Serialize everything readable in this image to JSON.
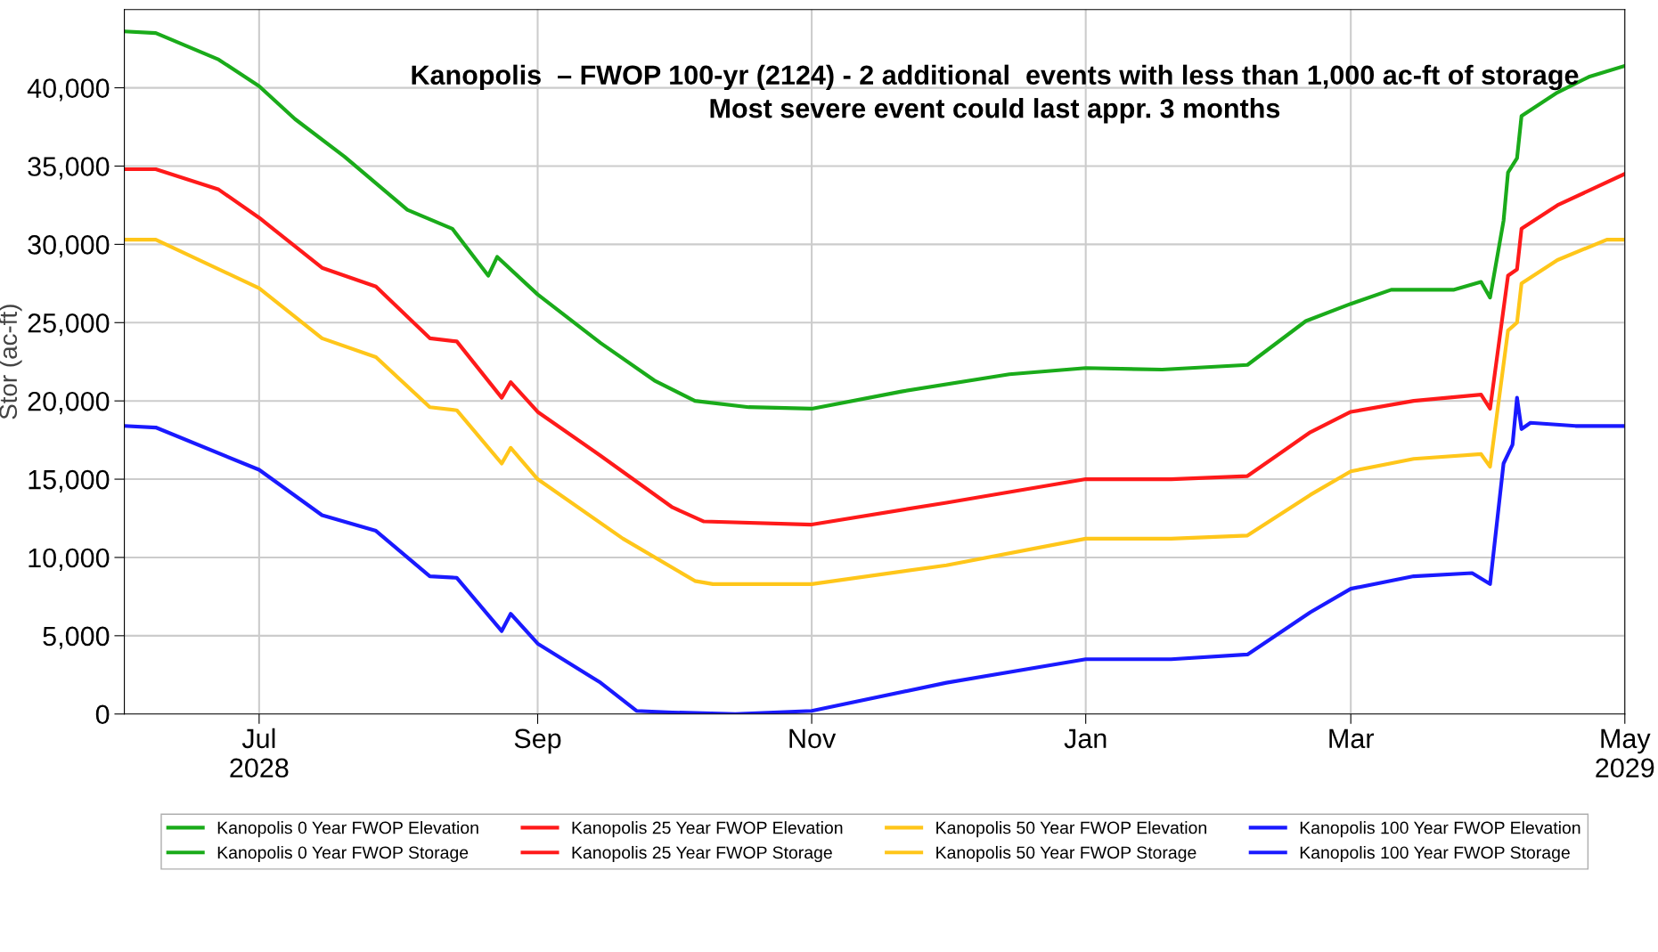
{
  "chart_data": {
    "type": "line",
    "ylabel": "Stor (ac-ft)",
    "annotations": [
      "Kanopolis  – FWOP 100-yr (2124) - 2 additional  events with less than 1,000 ac-ft of storage\nMost severe event could last appr. 3 months"
    ],
    "xlim": [
      "2028-06-01",
      "2029-05-01"
    ],
    "xticks": [
      {
        "value": "2028-07-01",
        "label": "Jul\n2028"
      },
      {
        "value": "2028-09-01",
        "label": "Sep"
      },
      {
        "value": "2028-11-01",
        "label": "Nov"
      },
      {
        "value": "2029-01-01",
        "label": "Jan"
      },
      {
        "value": "2029-03-01",
        "label": "Mar"
      },
      {
        "value": "2029-05-01",
        "label": "May\n2029"
      }
    ],
    "ylim": [
      0,
      45000
    ],
    "yticks": [
      0,
      {
        "value": 5000,
        "label": "5,000"
      },
      {
        "value": 10000,
        "label": "10,000"
      },
      {
        "value": 15000,
        "label": "15,000"
      },
      {
        "value": 20000,
        "label": "20,000"
      },
      {
        "value": 25000,
        "label": "25,000"
      },
      {
        "value": 30000,
        "label": "30,000"
      },
      {
        "value": 35000,
        "label": "35,000"
      },
      {
        "value": 40000,
        "label": "40,000"
      }
    ],
    "grid": true,
    "legend": "bottom",
    "line_style": "solid",
    "marker": "none",
    "series": [
      {
        "name": "Kanopolis 0 Year FWOP Elevation",
        "color": "#1aab1a"
      },
      {
        "name": "Kanopolis 0 Year FWOP Storage",
        "color": "#1aab1a",
        "x": [
          "2028-06-01",
          "2028-06-08",
          "2028-06-22",
          "2028-07-01",
          "2028-07-09",
          "2028-07-20",
          "2028-08-03",
          "2028-08-13",
          "2028-08-21",
          "2028-08-23",
          "2028-09-01",
          "2028-09-15",
          "2028-09-27",
          "2028-10-06",
          "2028-10-18",
          "2028-11-01",
          "2028-11-21",
          "2028-12-15",
          "2029-01-01",
          "2029-01-18",
          "2029-02-06",
          "2029-02-19",
          "2029-03-01",
          "2029-03-10",
          "2029-03-24",
          "2029-03-30",
          "2029-04-01",
          "2029-04-04",
          "2029-04-05",
          "2029-04-07",
          "2029-04-08",
          "2029-04-16",
          "2029-04-23",
          "2029-05-01"
        ],
        "values": [
          43600,
          43500,
          41800,
          40100,
          38000,
          35600,
          32200,
          31000,
          28000,
          29200,
          26800,
          23700,
          21300,
          20000,
          19600,
          19500,
          20600,
          21700,
          22100,
          22000,
          22300,
          25100,
          26200,
          27100,
          27100,
          27600,
          26600,
          31500,
          34600,
          35500,
          38200,
          39700,
          40700,
          41400
        ]
      },
      {
        "name": "Kanopolis 25 Year FWOP Elevation",
        "color": "#ff1a1a"
      },
      {
        "name": "Kanopolis 25 Year FWOP Storage",
        "color": "#ff1a1a",
        "x": [
          "2028-06-01",
          "2028-06-08",
          "2028-06-22",
          "2028-07-01",
          "2028-07-15",
          "2028-07-27",
          "2028-08-08",
          "2028-08-14",
          "2028-08-24",
          "2028-08-26",
          "2028-09-01",
          "2028-09-15",
          "2028-10-01",
          "2028-10-08",
          "2028-11-01",
          "2028-12-01",
          "2029-01-01",
          "2029-01-20",
          "2029-02-06",
          "2029-02-20",
          "2029-03-01",
          "2029-03-15",
          "2029-03-30",
          "2029-04-01",
          "2029-04-05",
          "2029-04-07",
          "2029-04-08",
          "2029-04-16",
          "2029-05-01"
        ],
        "values": [
          34800,
          34800,
          33500,
          31700,
          28500,
          27300,
          24000,
          23800,
          20200,
          21200,
          19300,
          16500,
          13200,
          12300,
          12100,
          13500,
          15000,
          15000,
          15200,
          18000,
          19300,
          20000,
          20400,
          19500,
          28000,
          28400,
          31000,
          32500,
          34500
        ]
      },
      {
        "name": "Kanopolis 50 Year FWOP Elevation",
        "color": "#ffc61a"
      },
      {
        "name": "Kanopolis 50 Year FWOP Storage",
        "color": "#ffc61a",
        "x": [
          "2028-06-01",
          "2028-06-08",
          "2028-07-01",
          "2028-07-15",
          "2028-07-27",
          "2028-08-08",
          "2028-08-14",
          "2028-08-24",
          "2028-08-26",
          "2028-09-01",
          "2028-09-20",
          "2028-10-06",
          "2028-10-10",
          "2028-11-01",
          "2028-12-01",
          "2029-01-01",
          "2029-01-20",
          "2029-02-06",
          "2029-02-20",
          "2029-03-01",
          "2029-03-15",
          "2029-03-30",
          "2029-04-01",
          "2029-04-05",
          "2029-04-07",
          "2029-04-08",
          "2029-04-16",
          "2029-04-27",
          "2029-05-01"
        ],
        "values": [
          30300,
          30300,
          27200,
          24000,
          22800,
          19600,
          19400,
          16000,
          17000,
          15000,
          11200,
          8500,
          8300,
          8300,
          9500,
          11200,
          11200,
          11400,
          14000,
          15500,
          16300,
          16600,
          15800,
          24500,
          25000,
          27500,
          29000,
          30300,
          30300
        ]
      },
      {
        "name": "Kanopolis 100 Year FWOP Elevation",
        "color": "#1a1aff"
      },
      {
        "name": "Kanopolis 100 Year FWOP Storage",
        "color": "#1a1aff",
        "x": [
          "2028-06-01",
          "2028-06-08",
          "2028-07-01",
          "2028-07-15",
          "2028-07-27",
          "2028-08-08",
          "2028-08-14",
          "2028-08-24",
          "2028-08-26",
          "2028-09-01",
          "2028-09-15",
          "2028-09-23",
          "2028-10-01",
          "2028-10-15",
          "2028-11-01",
          "2028-12-01",
          "2029-01-01",
          "2029-01-20",
          "2029-02-06",
          "2029-02-20",
          "2029-03-01",
          "2029-03-15",
          "2029-03-28",
          "2029-04-01",
          "2029-04-04",
          "2029-04-06",
          "2029-04-07",
          "2029-04-08",
          "2029-04-10",
          "2029-04-20",
          "2029-05-01"
        ],
        "values": [
          18400,
          18300,
          15600,
          12700,
          11700,
          8800,
          8700,
          5300,
          6400,
          4500,
          2000,
          200,
          100,
          0,
          200,
          2000,
          3500,
          3500,
          3800,
          6500,
          8000,
          8800,
          9000,
          8300,
          16000,
          17200,
          20200,
          18200,
          18600,
          18400,
          18400
        ]
      }
    ]
  }
}
